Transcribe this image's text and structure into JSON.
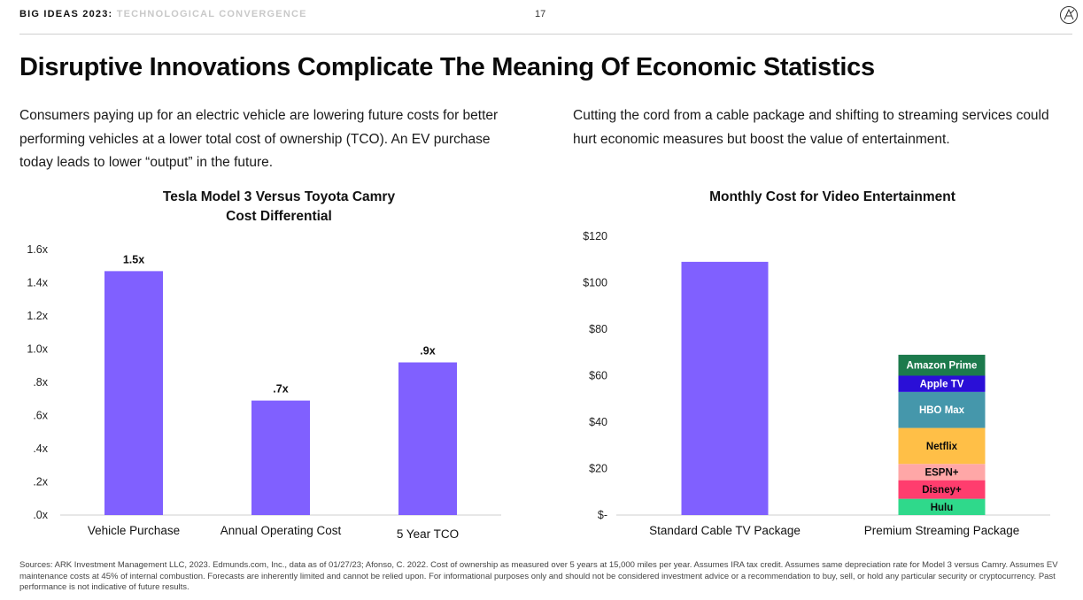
{
  "header": {
    "brand": "BIG IDEAS 2023:",
    "section": "TECHNOLOGICAL CONVERGENCE",
    "page_number": "17",
    "logo_icon": "ark-logo-icon"
  },
  "title": "Disruptive Innovations Complicate The Meaning Of Economic Statistics",
  "left_text": "Consumers paying up for an electric vehicle are lowering future costs for better performing vehicles at a lower total cost of ownership (TCO). An EV purchase today leads to lower “output” in the future.",
  "right_text": "Cutting the cord from a cable package and shifting to streaming services could hurt economic measures but boost the value of entertainment.",
  "chart_data": [
    {
      "type": "bar",
      "title_lines": [
        "Tesla Model 3 Versus Toyota Camry",
        "Cost Differential"
      ],
      "categories": [
        "Vehicle Purchase",
        "Annual Operating Cost",
        "5 Year TCO"
      ],
      "values": [
        1.47,
        0.69,
        0.92
      ],
      "data_labels": [
        "1.5x",
        ".7x",
        ".9x"
      ],
      "yticks": [
        ".0x",
        ".2x",
        ".4x",
        ".6x",
        ".8x",
        "1.0x",
        "1.2x",
        "1.4x",
        "1.6x"
      ],
      "ylim": [
        0,
        1.6
      ],
      "color": "#8060ff",
      "grid": false
    },
    {
      "type": "bar",
      "stacked": true,
      "title_lines": [
        "Monthly Cost for Video Entertainment"
      ],
      "categories": [
        "Standard Cable TV Package",
        "Premium Streaming Package"
      ],
      "yticks": [
        "$-",
        "$20",
        "$40",
        "$60",
        "$80",
        "$100",
        "$120"
      ],
      "ylim": [
        0,
        120
      ],
      "cable_value": 109,
      "cable_color": "#8060ff",
      "segments": [
        {
          "name": "Hulu",
          "value": 7,
          "color": "#2fd98b",
          "text_color": "#0b0b0b"
        },
        {
          "name": "Disney+",
          "value": 8,
          "color": "#ff3d6e",
          "text_color": "#0b0b0b"
        },
        {
          "name": "ESPN+",
          "value": 7,
          "color": "#ffa7a7",
          "text_color": "#0b0b0b"
        },
        {
          "name": "Netflix",
          "value": 15.5,
          "color": "#ffbf47",
          "text_color": "#0b0b0b"
        },
        {
          "name": "HBO Max",
          "value": 15.5,
          "color": "#4597ab",
          "text_color": "#ffffff"
        },
        {
          "name": "Apple TV",
          "value": 7,
          "color": "#2a0fd7",
          "text_color": "#ffffff"
        },
        {
          "name": "Amazon Prime",
          "value": 9,
          "color": "#1c7a4c",
          "text_color": "#ffffff"
        }
      ],
      "grid": false
    }
  ],
  "footer": "Sources: ARK Investment Management LLC, 2023. Edmunds.com, Inc., data as of 01/27/23; Afonso, C. 2022. Cost of ownership as measured over 5 years at 15,000 miles per year. Assumes IRA tax credit. Assumes same depreciation rate for Model 3 versus Camry. Assumes EV maintenance costs at 45% of internal combustion. Forecasts are inherently limited and cannot be relied upon. For informational purposes only and should not be considered investment advice or a recommendation to buy, sell, or hold any particular security or cryptocurrency. Past performance is not indicative of future results."
}
